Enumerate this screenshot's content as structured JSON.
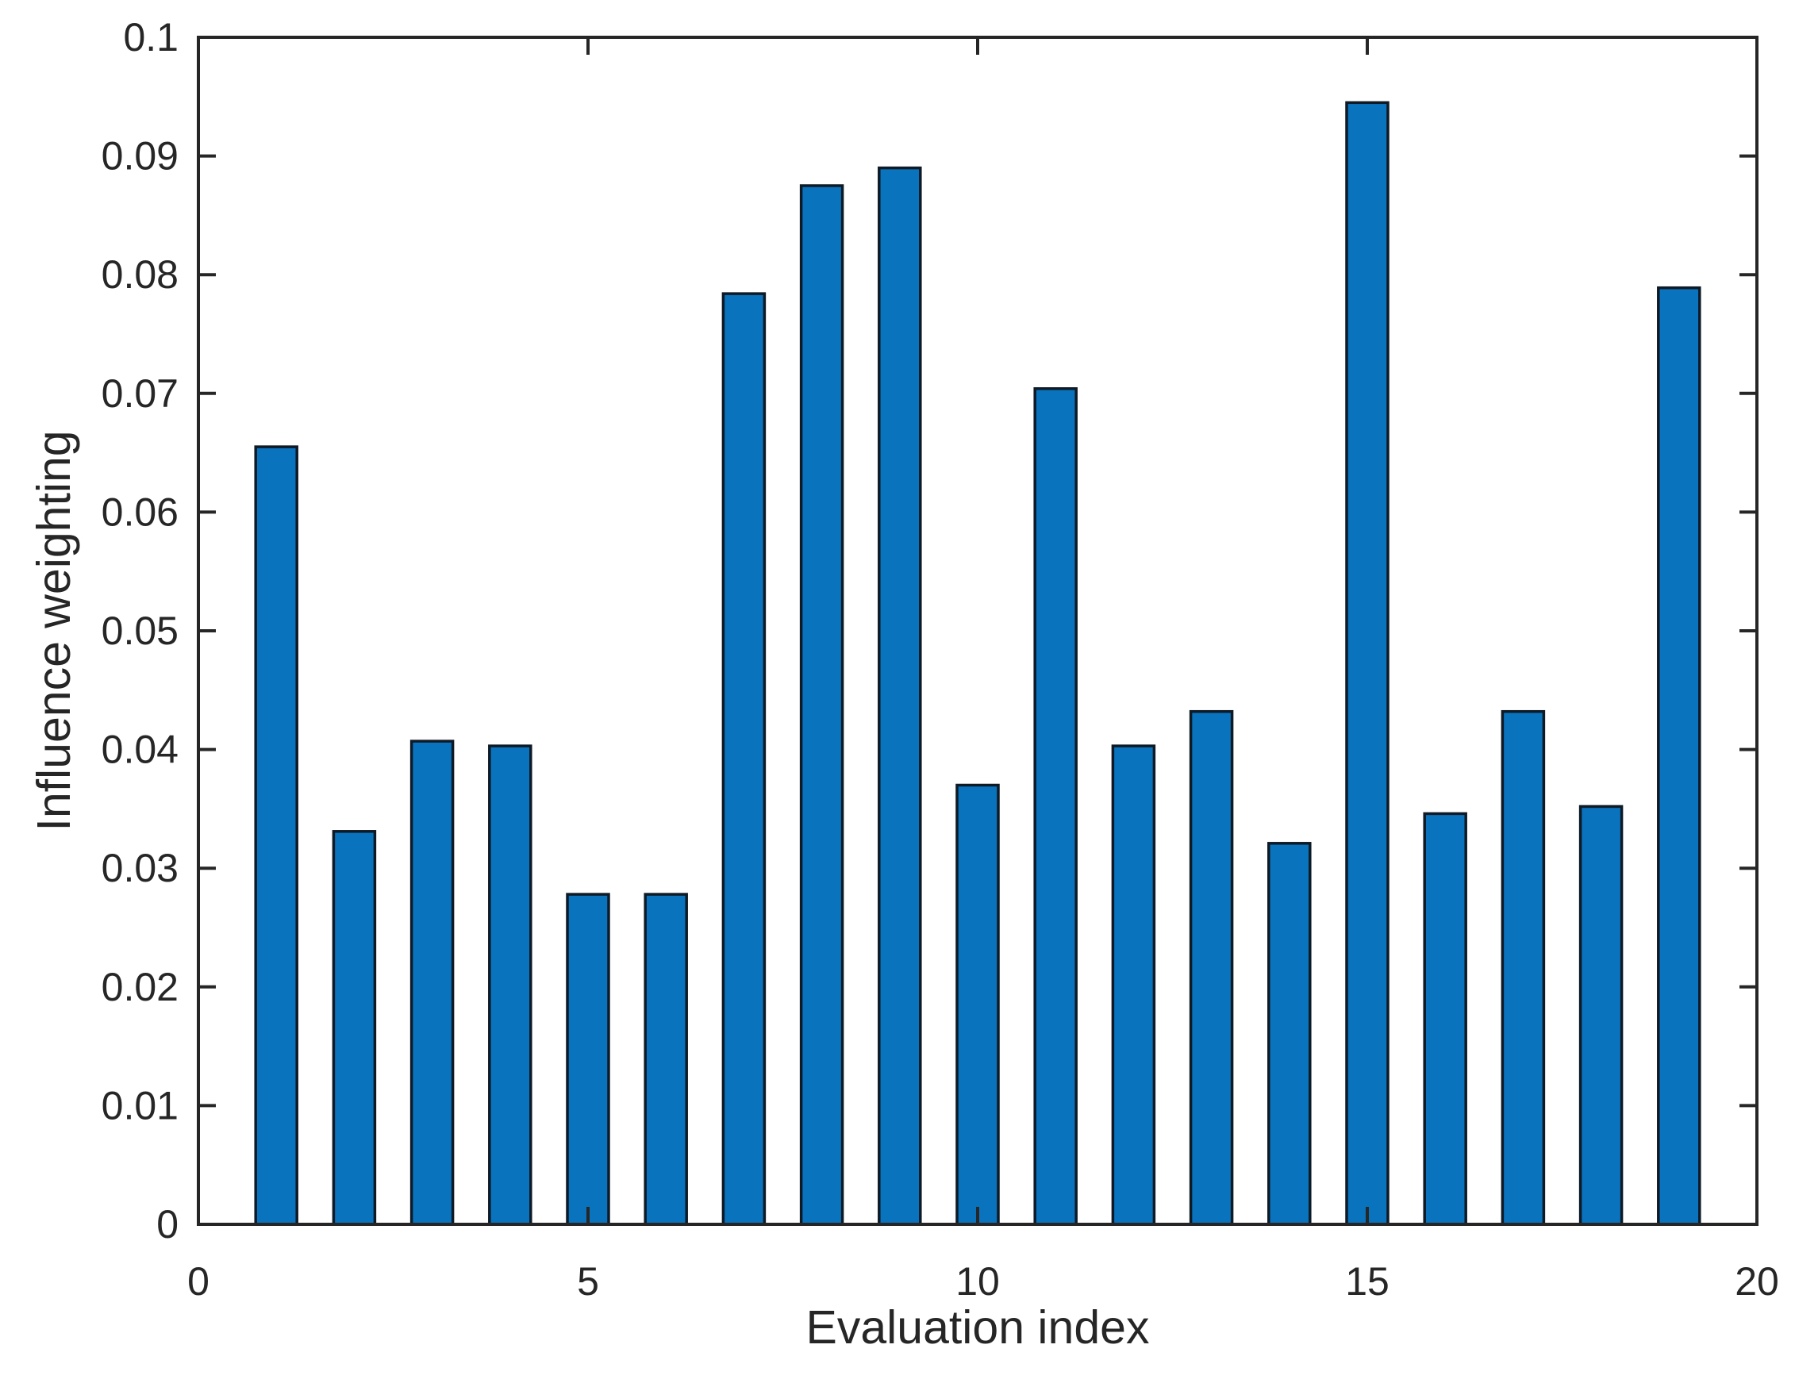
{
  "figure": {
    "background": "#ffffff"
  },
  "chart_data": {
    "type": "bar",
    "title": "",
    "xlabel": "Evaluation index",
    "ylabel": "Influence weighting",
    "x": [
      1,
      2,
      3,
      4,
      5,
      6,
      7,
      8,
      9,
      10,
      11,
      12,
      13,
      14,
      15,
      16,
      17,
      18,
      19
    ],
    "values": [
      0.0655,
      0.0331,
      0.0407,
      0.0403,
      0.0278,
      0.0278,
      0.0784,
      0.0875,
      0.089,
      0.037,
      0.0704,
      0.0403,
      0.0432,
      0.0321,
      0.0945,
      0.0346,
      0.0432,
      0.0352,
      0.0789
    ],
    "xlim": [
      0,
      20
    ],
    "ylim": [
      0,
      0.1
    ],
    "x_ticks": [
      0,
      5,
      10,
      15,
      20
    ],
    "x_tick_labels": [
      "0",
      "5",
      "10",
      "15",
      "20"
    ],
    "y_ticks": [
      0,
      0.01,
      0.02,
      0.03,
      0.04,
      0.05,
      0.06,
      0.07,
      0.08,
      0.09,
      0.1
    ],
    "y_tick_labels": [
      "0",
      "0.01",
      "0.02",
      "0.03",
      "0.04",
      "0.05",
      "0.06",
      "0.07",
      "0.08",
      "0.09",
      "0.1"
    ],
    "grid": false,
    "legend": null,
    "bar_width_ratio": 0.53,
    "colors": {
      "bar_fill": "#0973BD",
      "bar_edge": "#0E1A26",
      "axis": "#262626",
      "tick_label": "#262626",
      "background": "#FFFFFF"
    }
  }
}
